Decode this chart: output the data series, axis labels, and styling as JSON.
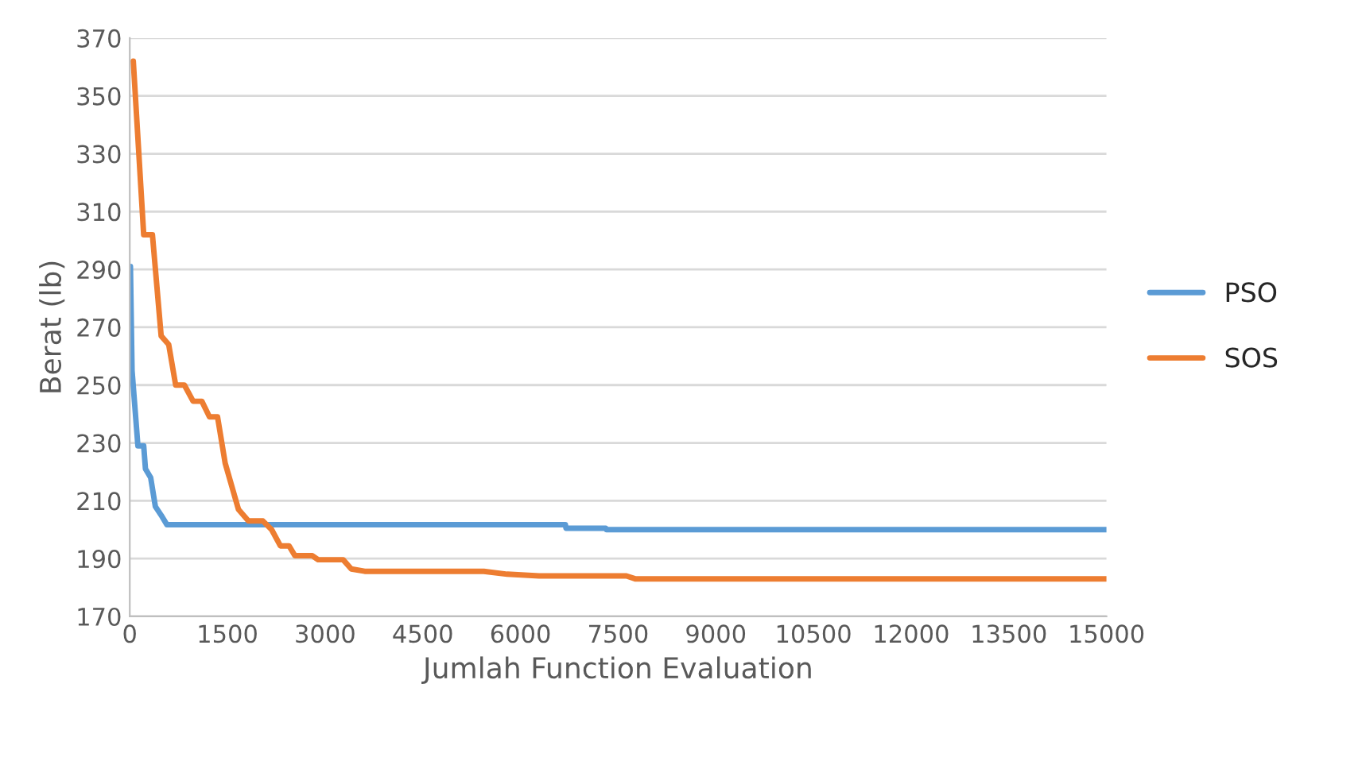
{
  "chart_data": {
    "type": "line",
    "xlabel": "Jumlah Function Evaluation",
    "ylabel": "Berat (lb)",
    "series": [
      {
        "name": "PSO",
        "color": "#5b9bd5",
        "x": [
          10,
          35,
          125,
          214,
          241,
          321,
          393,
          482,
          571,
          6690,
          6700,
          7310,
          7320,
          15000
        ],
        "values": [
          291,
          255,
          229,
          229,
          221,
          218,
          208,
          205,
          201.7,
          201.7,
          200.5,
          200.5,
          200,
          200
        ]
      },
      {
        "name": "SOS",
        "color": "#ed7d31",
        "x": [
          54,
          214,
          348,
          482,
          598,
          705,
          839,
          973,
          1107,
          1224,
          1348,
          1465,
          1669,
          1822,
          2045,
          2179,
          2313,
          2447,
          2536,
          2804,
          2893,
          3277,
          3402,
          3608,
          5438,
          5796,
          6287,
          7627,
          7761,
          15000
        ],
        "values": [
          362,
          302,
          302,
          267,
          264,
          250,
          250,
          244.4,
          244.4,
          239,
          239,
          223,
          207,
          203,
          203,
          200,
          194.4,
          194.4,
          191,
          191,
          189.6,
          189.6,
          186.4,
          185.6,
          185.6,
          184.6,
          184,
          184,
          183,
          183
        ]
      }
    ],
    "xlim": [
      0,
      15000
    ],
    "xticks": [
      0,
      1500,
      3000,
      4500,
      6000,
      7500,
      9000,
      10500,
      12000,
      13500,
      15000
    ],
    "ylim": [
      170,
      370
    ],
    "yticks": [
      170,
      190,
      210,
      230,
      250,
      270,
      290,
      310,
      330,
      350,
      370
    ],
    "grid": "y",
    "legend": "right",
    "line_style": "solid",
    "marker": "none"
  }
}
